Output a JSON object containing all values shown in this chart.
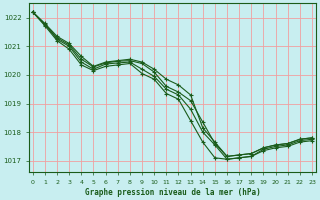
{
  "xlabel": "Graphe pression niveau de la mer (hPa)",
  "ylim": [
    1016.6,
    1022.5
  ],
  "xlim": [
    -0.3,
    23.3
  ],
  "yticks": [
    1017,
    1018,
    1019,
    1020,
    1021,
    1022
  ],
  "xticks": [
    0,
    1,
    2,
    3,
    4,
    5,
    6,
    7,
    8,
    9,
    10,
    11,
    12,
    13,
    14,
    15,
    16,
    17,
    18,
    19,
    20,
    21,
    22,
    23
  ],
  "bg_color": "#c8eef0",
  "line_color": "#1a5c1a",
  "grid_color": "#f0a0a0",
  "lines": [
    [
      1022.2,
      1021.8,
      1021.35,
      1021.1,
      1020.65,
      1020.3,
      1020.45,
      1020.5,
      1020.55,
      1020.45,
      1020.2,
      1019.85,
      1019.65,
      1019.3,
      1018.15,
      1017.65,
      1017.15,
      1017.2,
      1017.25,
      1017.45,
      1017.55,
      1017.6,
      1017.75,
      1017.8
    ],
    [
      1022.2,
      1021.75,
      1021.3,
      1021.05,
      1020.55,
      1020.28,
      1020.42,
      1020.48,
      1020.5,
      1020.4,
      1020.1,
      1019.6,
      1019.4,
      1019.1,
      1018.35,
      1017.6,
      1017.15,
      1017.2,
      1017.25,
      1017.45,
      1017.55,
      1017.6,
      1017.75,
      1017.8
    ],
    [
      1022.2,
      1021.78,
      1021.25,
      1021.0,
      1020.45,
      1020.2,
      1020.38,
      1020.42,
      1020.45,
      1020.2,
      1019.95,
      1019.5,
      1019.3,
      1018.8,
      1018.0,
      1017.55,
      1017.05,
      1017.1,
      1017.15,
      1017.4,
      1017.5,
      1017.55,
      1017.7,
      1017.75
    ],
    [
      1022.2,
      1021.72,
      1021.2,
      1020.9,
      1020.35,
      1020.15,
      1020.3,
      1020.35,
      1020.4,
      1020.05,
      1019.85,
      1019.35,
      1019.15,
      1018.4,
      1017.65,
      1017.1,
      1017.05,
      1017.1,
      1017.15,
      1017.35,
      1017.45,
      1017.5,
      1017.65,
      1017.7
    ]
  ]
}
